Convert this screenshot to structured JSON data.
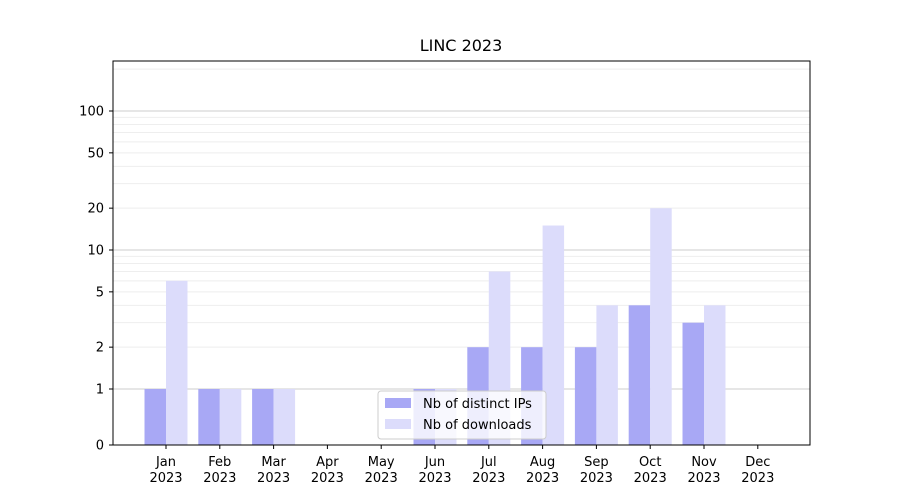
{
  "chart_data": {
    "type": "bar",
    "title": "LINC 2023",
    "xlabel": "",
    "ylabel": "",
    "categories": [
      {
        "month": "Jan",
        "year": "2023"
      },
      {
        "month": "Feb",
        "year": "2023"
      },
      {
        "month": "Mar",
        "year": "2023"
      },
      {
        "month": "Apr",
        "year": "2023"
      },
      {
        "month": "May",
        "year": "2023"
      },
      {
        "month": "Jun",
        "year": "2023"
      },
      {
        "month": "Jul",
        "year": "2023"
      },
      {
        "month": "Aug",
        "year": "2023"
      },
      {
        "month": "Sep",
        "year": "2023"
      },
      {
        "month": "Oct",
        "year": "2023"
      },
      {
        "month": "Nov",
        "year": "2023"
      },
      {
        "month": "Dec",
        "year": "2023"
      }
    ],
    "series": [
      {
        "name": "Nb of distinct IPs",
        "color": "#a8a8f5",
        "values": [
          1,
          1,
          1,
          0,
          0,
          1,
          2,
          2,
          2,
          4,
          3,
          0
        ]
      },
      {
        "name": "Nb of downloads",
        "color": "#dcdcfb",
        "values": [
          6,
          1,
          1,
          0,
          0,
          1,
          7,
          15,
          4,
          20,
          4,
          0
        ]
      }
    ],
    "y_scale": "symlog",
    "y_ticks": [
      "0",
      "1",
      "2",
      "5",
      "10",
      "20",
      "50",
      "100"
    ],
    "ylim": [
      0,
      120
    ],
    "grid": true,
    "legend_position": "lower-center"
  }
}
